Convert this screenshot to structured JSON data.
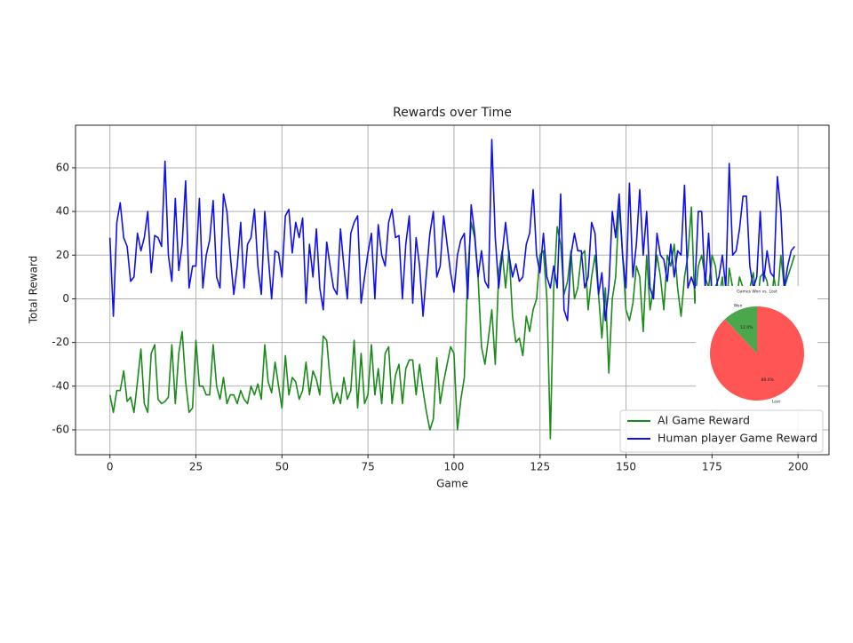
{
  "chart_data": [
    {
      "type": "line",
      "title": "Rewards over Time",
      "x_label": "Game",
      "y_label": "Total Reward",
      "x": [
        0,
        1,
        2,
        3,
        4,
        5,
        6,
        7,
        8,
        9,
        10,
        11,
        12,
        13,
        14,
        15,
        16,
        17,
        18,
        19,
        20,
        21,
        22,
        23,
        24,
        25,
        26,
        27,
        28,
        29,
        30,
        31,
        32,
        33,
        34,
        35,
        36,
        37,
        38,
        39,
        40,
        41,
        42,
        43,
        44,
        45,
        46,
        47,
        48,
        49,
        50,
        51,
        52,
        53,
        54,
        55,
        56,
        57,
        58,
        59,
        60,
        61,
        62,
        63,
        64,
        65,
        66,
        67,
        68,
        69,
        70,
        71,
        72,
        73,
        74,
        75,
        76,
        77,
        78,
        79,
        80,
        81,
        82,
        83,
        84,
        85,
        86,
        87,
        88,
        89,
        90,
        91,
        92,
        93,
        94,
        95,
        96,
        97,
        98,
        99,
        100,
        101,
        102,
        103,
        104,
        105,
        106,
        107,
        108,
        109,
        110,
        111,
        112,
        113,
        114,
        115,
        116,
        117,
        118,
        119,
        120,
        121,
        122,
        123,
        124,
        125,
        126,
        127,
        128,
        129,
        130,
        131,
        132,
        133,
        134,
        135,
        136,
        137,
        138,
        139,
        140,
        141,
        142,
        143,
        144,
        145,
        146,
        147,
        148,
        149,
        150,
        151,
        152,
        153,
        154,
        155,
        156,
        157,
        158,
        159,
        160,
        161,
        162,
        163,
        164,
        165,
        166,
        167,
        168,
        169,
        170,
        171,
        172,
        173,
        174,
        175,
        176,
        177,
        178,
        179,
        180,
        181,
        182,
        183,
        184,
        185,
        186,
        187,
        188,
        189,
        190,
        191,
        192,
        193,
        194,
        195,
        196,
        197,
        198,
        199
      ],
      "series": [
        {
          "name": "AI Game Reward",
          "color": "#1a8a1a",
          "values": [
            -44,
            -52,
            -42,
            -42,
            -33,
            -47,
            -45,
            -52,
            -38,
            -23,
            -48,
            -52,
            -25,
            -21,
            -46,
            -48,
            -47,
            -45,
            -21,
            -48,
            -25,
            -15,
            -38,
            -52,
            -50,
            -19,
            -40,
            -40,
            -44,
            -44,
            -21,
            -40,
            -46,
            -36,
            -48,
            -44,
            -44,
            -48,
            -42,
            -46,
            -48,
            -40,
            -44,
            -39,
            -46,
            -21,
            -38,
            -43,
            -29,
            -40,
            -50,
            -26,
            -44,
            -36,
            -38,
            -46,
            -42,
            -29,
            -44,
            -33,
            -37,
            -44,
            -17,
            -19,
            -37,
            -48,
            -43,
            -48,
            -36,
            -46,
            -42,
            -19,
            -50,
            -25,
            -48,
            -44,
            -21,
            -44,
            -32,
            -48,
            -25,
            -22,
            -48,
            -35,
            -30,
            -48,
            -32,
            -28,
            -28,
            -44,
            -30,
            -42,
            -52,
            -60,
            -55,
            -27,
            -48,
            -38,
            -30,
            -22,
            -25,
            -60,
            -46,
            -36,
            12,
            35,
            28,
            10,
            -22,
            -30,
            -18,
            -5,
            -30,
            12,
            22,
            5,
            22,
            -8,
            -20,
            -18,
            -26,
            -8,
            -15,
            -5,
            0,
            20,
            22,
            0,
            -64,
            5,
            33,
            25,
            2,
            8,
            22,
            0,
            5,
            20,
            22,
            -5,
            10,
            20,
            2,
            -18,
            5,
            -34,
            0,
            10,
            44,
            20,
            -5,
            -10,
            -2,
            15,
            10,
            -15,
            20,
            -5,
            5,
            20,
            10,
            -5,
            20,
            15,
            25,
            5,
            -8,
            10,
            20,
            42,
            -2,
            15,
            20,
            10,
            5,
            20,
            15,
            0,
            10,
            -10,
            14,
            5,
            -2,
            10,
            5,
            0,
            5,
            12,
            -5,
            10,
            12,
            8,
            -5,
            10,
            0,
            20,
            5,
            10,
            15,
            20
          ]
        },
        {
          "name": "Human player Game Reward",
          "color": "#1010ee",
          "values": [
            28,
            -8,
            35,
            44,
            28,
            24,
            8,
            10,
            30,
            22,
            28,
            40,
            12,
            29,
            28,
            24,
            63,
            20,
            8,
            46,
            13,
            25,
            54,
            5,
            15,
            15,
            46,
            5,
            20,
            27,
            45,
            10,
            5,
            48,
            40,
            20,
            2,
            15,
            35,
            5,
            25,
            28,
            41,
            15,
            2,
            40,
            20,
            0,
            22,
            21,
            10,
            38,
            41,
            21,
            35,
            28,
            37,
            -2,
            25,
            10,
            32,
            5,
            -5,
            26,
            15,
            5,
            2,
            32,
            15,
            0,
            30,
            35,
            38,
            -2,
            10,
            21,
            30,
            0,
            34,
            20,
            15,
            35,
            41,
            28,
            29,
            0,
            25,
            38,
            -2,
            28,
            15,
            -8,
            12,
            30,
            40,
            10,
            15,
            38,
            25,
            12,
            3,
            20,
            27,
            30,
            0,
            43,
            30,
            10,
            22,
            8,
            5,
            73,
            28,
            5,
            20,
            35,
            20,
            10,
            16,
            8,
            10,
            25,
            30,
            50,
            20,
            12,
            30,
            10,
            5,
            15,
            5,
            48,
            -5,
            -10,
            20,
            30,
            22,
            22,
            5,
            10,
            35,
            30,
            2,
            12,
            -10,
            5,
            40,
            28,
            48,
            20,
            5,
            53,
            10,
            25,
            50,
            20,
            40,
            5,
            0,
            30,
            20,
            18,
            8,
            25,
            10,
            22,
            20,
            52,
            5,
            10,
            5,
            40,
            40,
            5,
            30,
            0,
            5,
            10,
            20,
            5,
            62,
            20,
            22,
            32,
            47,
            47,
            15,
            5,
            10,
            40,
            8,
            22,
            12,
            10,
            56,
            40,
            5,
            15,
            22,
            24
          ]
        }
      ],
      "xlim": [
        -10,
        209
      ],
      "ylim": [
        -71.4,
        79.5
      ],
      "xticks": [
        0,
        25,
        50,
        75,
        100,
        125,
        150,
        175,
        200
      ],
      "yticks": [
        -60,
        -40,
        -20,
        0,
        20,
        40,
        60
      ],
      "grid": true,
      "legend": "lower right"
    },
    {
      "type": "pie",
      "title": "Games Won vs. Lost",
      "labels": [
        "Won",
        "Lost"
      ],
      "values": [
        12.0,
        88.0
      ],
      "value_labels": [
        "12.0%",
        "88.0%"
      ],
      "colors": [
        "#4ca64c",
        "#ff5555"
      ]
    }
  ]
}
